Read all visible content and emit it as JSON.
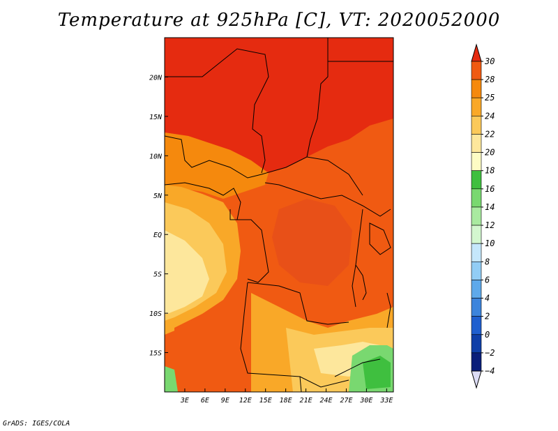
{
  "title": "Temperature at 925hPa [C], VT: 2020052000",
  "credit": "GrADS: IGES/COLA",
  "map": {
    "lon_range": [
      0,
      34
    ],
    "lat_range": [
      -20,
      25
    ],
    "x_ticks": [
      {
        "lon": 3,
        "label": "3E"
      },
      {
        "lon": 6,
        "label": "6E"
      },
      {
        "lon": 9,
        "label": "9E"
      },
      {
        "lon": 12,
        "label": "12E"
      },
      {
        "lon": 15,
        "label": "15E"
      },
      {
        "lon": 18,
        "label": "18E"
      },
      {
        "lon": 21,
        "label": "21E"
      },
      {
        "lon": 24,
        "label": "24E"
      },
      {
        "lon": 27,
        "label": "27E"
      },
      {
        "lon": 30,
        "label": "30E"
      },
      {
        "lon": 33,
        "label": "33E"
      }
    ],
    "y_ticks": [
      {
        "lat": 20,
        "label": "20N"
      },
      {
        "lat": 15,
        "label": "15N"
      },
      {
        "lat": 10,
        "label": "10N"
      },
      {
        "lat": 5,
        "label": "5N"
      },
      {
        "lat": 0,
        "label": "EQ"
      },
      {
        "lat": -5,
        "label": "5S"
      },
      {
        "lat": -10,
        "label": "10S"
      },
      {
        "lat": -15,
        "label": "15S"
      }
    ]
  },
  "colorbar": {
    "levels": [
      "30",
      "28",
      "25",
      "24",
      "22",
      "20",
      "18",
      "16",
      "14",
      "12",
      "10",
      "8",
      "6",
      "4",
      "2",
      "0",
      "−2",
      "−4"
    ],
    "colors": [
      "#e52b10",
      "#f05a12",
      "#f5890d",
      "#f9a828",
      "#fbc95a",
      "#fde79c",
      "#fdfcc4",
      "#3fbf3f",
      "#79d870",
      "#a9eaa0",
      "#d3f7cf",
      "#c5e7fb",
      "#92cdf5",
      "#5ea9ea",
      "#3c84dc",
      "#1f5fcf",
      "#0f3fa8",
      "#0a1f7a",
      "#dcdcf5"
    ]
  }
}
